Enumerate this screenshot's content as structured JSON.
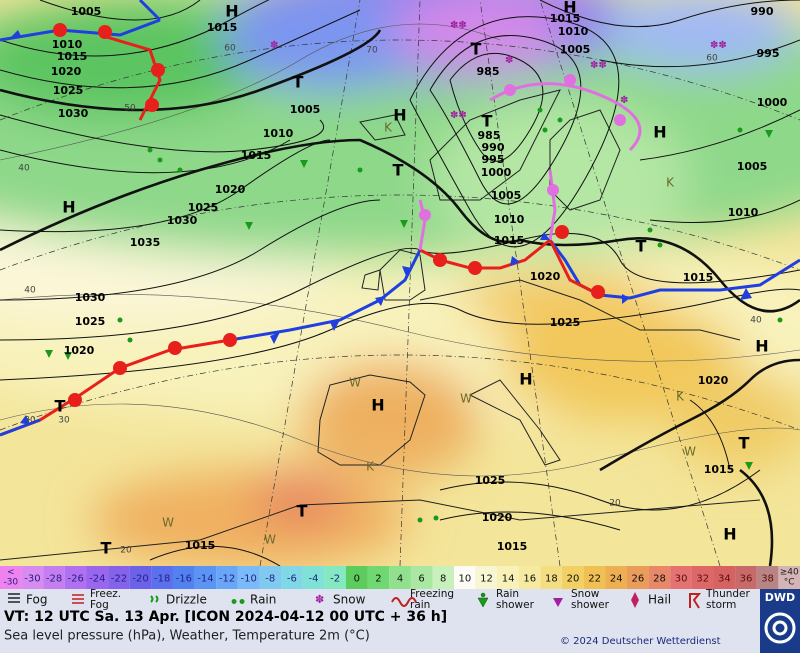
{
  "map": {
    "highs_lows": [
      "H",
      "H",
      "H",
      "H",
      "H",
      "H",
      "H",
      "H",
      "H",
      "T",
      "T",
      "T",
      "T",
      "T",
      "T",
      "T",
      "T",
      "T"
    ],
    "isobar_labels": [
      "1005",
      "1015",
      "1010",
      "1015",
      "1020",
      "1025",
      "1030",
      "1005",
      "1010",
      "1015",
      "1020",
      "1025",
      "1030",
      "1035",
      "1030",
      "1025",
      "1020",
      "985",
      "985",
      "990",
      "995",
      "1000",
      "1005",
      "1010",
      "1015",
      "1020",
      "1025",
      "1015",
      "1010",
      "1005",
      "990",
      "995",
      "1000",
      "1005",
      "1010",
      "1015",
      "1020",
      "1015",
      "1025",
      "1020",
      "1015",
      "1015"
    ],
    "temperature_labels": [
      "60",
      "70",
      "50",
      "40",
      "40",
      "30",
      "20",
      "60",
      "40",
      "30",
      "20"
    ],
    "air_mass_labels": [
      "K",
      "K",
      "W",
      "W",
      "W",
      "K",
      "K",
      "W",
      "W"
    ]
  },
  "temperature_scale": {
    "low": {
      "symbol": "<",
      "value": -30,
      "color": "#ee82ee"
    },
    "steps": [
      {
        "value": -30,
        "color": "#d98cf0"
      },
      {
        "value": -28,
        "color": "#c47ef0"
      },
      {
        "value": -26,
        "color": "#b070f0"
      },
      {
        "value": -24,
        "color": "#9a66ee"
      },
      {
        "value": -22,
        "color": "#8462ea"
      },
      {
        "value": -20,
        "color": "#6c62ea"
      },
      {
        "value": -18,
        "color": "#5c70ee"
      },
      {
        "value": -16,
        "color": "#5282f0"
      },
      {
        "value": -14,
        "color": "#5c94f4"
      },
      {
        "value": -12,
        "color": "#6aa6f6"
      },
      {
        "value": -10,
        "color": "#7abaf8"
      },
      {
        "value": -8,
        "color": "#80caf0"
      },
      {
        "value": -6,
        "color": "#80d8e6"
      },
      {
        "value": -4,
        "color": "#80e2d6"
      },
      {
        "value": -2,
        "color": "#84e8c0"
      },
      {
        "value": 0,
        "color": "#5ccc5c"
      },
      {
        "value": 2,
        "color": "#70d870"
      },
      {
        "value": 4,
        "color": "#90e08e"
      },
      {
        "value": 6,
        "color": "#aae8a2"
      },
      {
        "value": 8,
        "color": "#c8f0ba"
      },
      {
        "value": 10,
        "color": "#fcfcf4"
      },
      {
        "value": 12,
        "color": "#f8f6d2"
      },
      {
        "value": 14,
        "color": "#f8f2b8"
      },
      {
        "value": 16,
        "color": "#f6eaa0"
      },
      {
        "value": 18,
        "color": "#f4de84"
      },
      {
        "value": 20,
        "color": "#f2d064"
      },
      {
        "value": 22,
        "color": "#f0c052"
      },
      {
        "value": 24,
        "color": "#eeae52"
      },
      {
        "value": 26,
        "color": "#ea9c5a"
      },
      {
        "value": 28,
        "color": "#e88868"
      },
      {
        "value": 30,
        "color": "#e47272"
      },
      {
        "value": 32,
        "color": "#de6868"
      },
      {
        "value": 34,
        "color": "#d66262"
      },
      {
        "value": 36,
        "color": "#c86a6a"
      },
      {
        "value": 38,
        "color": "#b88484"
      }
    ],
    "high": {
      "symbol": "≥40",
      "unit": "°C",
      "color": "#d4b4b4"
    }
  },
  "weather_legend": [
    [
      "Fog"
    ],
    [
      "Freez.",
      "Fog"
    ],
    [
      "Drizzle"
    ],
    [
      "Rain"
    ],
    [
      "Snow"
    ],
    [
      "Freezing",
      "rain"
    ],
    [
      "Rain",
      "shower"
    ],
    [
      "Snow",
      "shower"
    ],
    [
      "Hail"
    ],
    [
      "Thunder",
      "storm"
    ]
  ],
  "footer": {
    "valid_time": "VT: 12 UTC Sa.  13 Apr. [ICON 2024-04-12  00 UTC + 36 h]",
    "description": "Sea level pressure (hPa), Weather, Temperature 2m (°C)",
    "copyright": "© 2024 Deutscher Wetterdienst",
    "logo": "DWD"
  }
}
